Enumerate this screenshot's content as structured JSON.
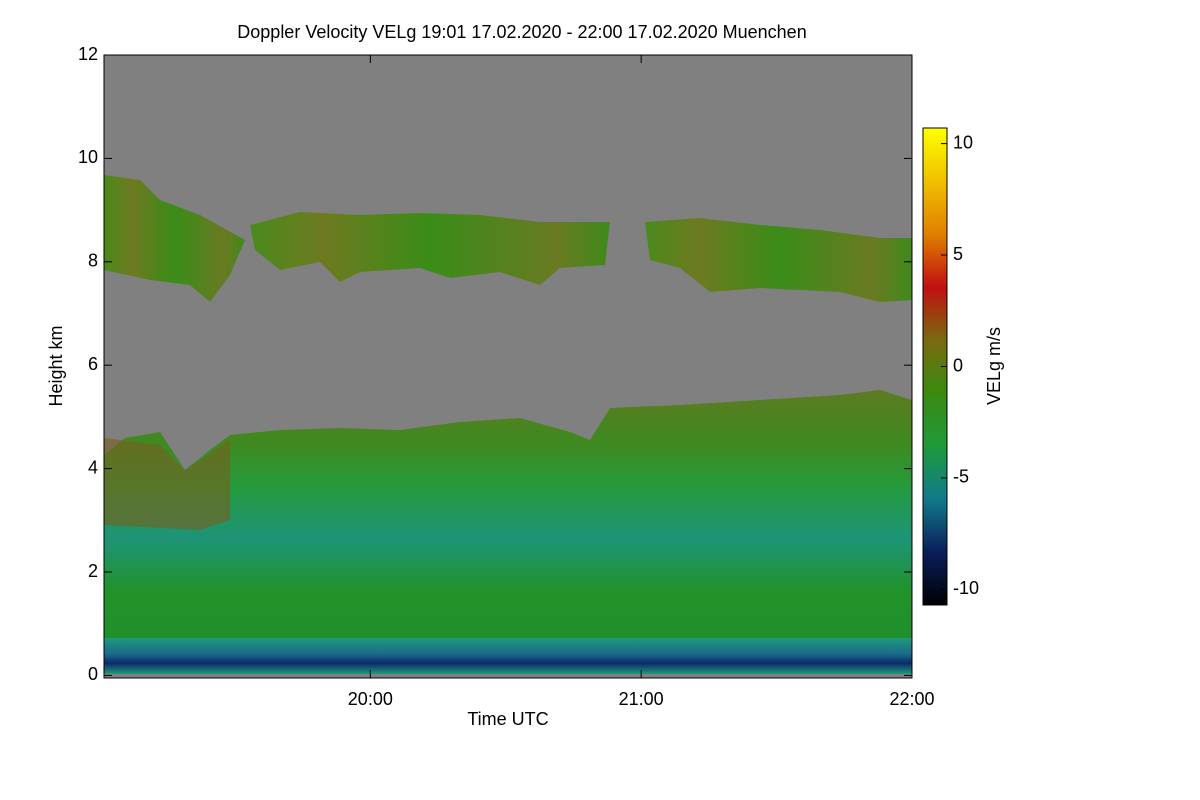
{
  "chart_data": {
    "type": "heatmap",
    "title": "Doppler Velocity VELg   19:01 17.02.2020 - 22:00 17.02.2020 Muenchen",
    "x_label": "Time UTC",
    "y_label": "Height km",
    "colorbar_label": "VELg m/s",
    "xlim": [
      1141,
      1320
    ],
    "xticks": [
      {
        "value": 1200,
        "label": "20:00"
      },
      {
        "value": 1260,
        "label": "21:00"
      },
      {
        "value": 1320,
        "label": "22:00"
      }
    ],
    "ylim": [
      -0.05,
      12
    ],
    "yticks": [
      0,
      2,
      4,
      6,
      8,
      10,
      12
    ],
    "clim": [
      -10.7,
      10.7
    ],
    "cticks": [
      -10,
      -5,
      0,
      5,
      10
    ],
    "colormap": [
      "#000000",
      "#0a1e5a",
      "#117a8a",
      "#1f9a3a",
      "#3a8a10",
      "#7a6a10",
      "#c01010",
      "#e08000",
      "#f0c000",
      "#ffff00"
    ]
  }
}
